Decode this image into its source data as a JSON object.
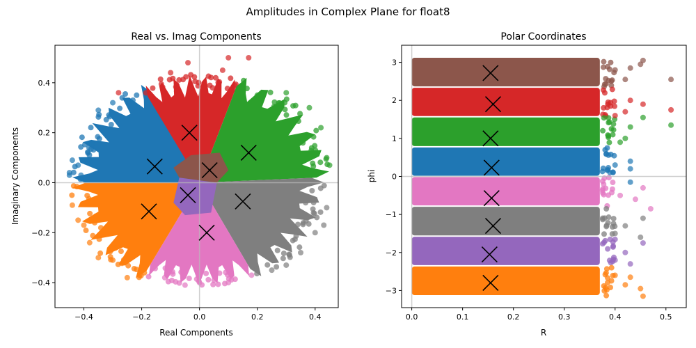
{
  "suptitle": "Amplitudes in Complex Plane for float8",
  "colors": {
    "blue": "#1f77b4",
    "orange": "#ff7f0e",
    "green": "#2ca02c",
    "red": "#d62728",
    "purple": "#9467bd",
    "brown": "#8c564b",
    "pink": "#e377c2",
    "gray": "#7f7f7f",
    "refline": "#bbbbbb",
    "marker": "#000000"
  },
  "chart_data": [
    {
      "type": "scatter",
      "title": "Real vs. Imag Components",
      "xlabel": "Real Components",
      "ylabel": "Imaginary Components",
      "xlim": [
        -0.5,
        0.48
      ],
      "ylim": [
        -0.5,
        0.55
      ],
      "xticks": [
        -0.4,
        -0.2,
        0.0,
        0.2,
        0.4
      ],
      "yticks": [
        -0.4,
        -0.2,
        0.0,
        0.2,
        0.4
      ],
      "xtick_labels": [
        "−0.4",
        "−0.2",
        "0.0",
        "0.2",
        "0.4"
      ],
      "ytick_labels": [
        "−0.4",
        "−0.2",
        "0.0",
        "0.2",
        "0.4"
      ],
      "reference_lines": {
        "x": 0,
        "y": 0
      },
      "cluster_regions": [
        {
          "color_key": "blue",
          "angle_range": [
            2.0,
            3.14
          ],
          "radius": 0.45
        },
        {
          "color_key": "red",
          "angle_range": [
            1.25,
            2.05
          ],
          "radius": 0.44
        },
        {
          "color_key": "green",
          "angle_range": [
            0.05,
            1.25
          ],
          "radius": 0.46
        },
        {
          "color_key": "gray",
          "angle_range": [
            -1.1,
            0.05
          ],
          "radius": 0.44
        },
        {
          "color_key": "pink",
          "angle_range": [
            -2.05,
            -1.1
          ],
          "radius": 0.42
        },
        {
          "color_key": "orange",
          "angle_range": [
            -3.14,
            -2.05
          ],
          "radius": 0.45
        }
      ],
      "inner_regions": [
        {
          "color_key": "brown",
          "polygon": [
            [
              -0.09,
              0.06
            ],
            [
              -0.03,
              0.11
            ],
            [
              0.07,
              0.12
            ],
            [
              0.1,
              0.05
            ],
            [
              0.06,
              0.0
            ],
            [
              -0.07,
              0.02
            ]
          ]
        },
        {
          "color_key": "purple",
          "polygon": [
            [
              -0.07,
              0.02
            ],
            [
              0.06,
              0.0
            ],
            [
              0.04,
              -0.12
            ],
            [
              -0.05,
              -0.13
            ],
            [
              -0.09,
              -0.08
            ]
          ]
        }
      ],
      "centroids": [
        {
          "x": -0.155,
          "y": 0.065
        },
        {
          "x": -0.035,
          "y": 0.2
        },
        {
          "x": 0.17,
          "y": 0.12
        },
        {
          "x": 0.035,
          "y": 0.05
        },
        {
          "x": -0.04,
          "y": -0.05
        },
        {
          "x": 0.15,
          "y": -0.075
        },
        {
          "x": 0.025,
          "y": -0.2
        },
        {
          "x": -0.175,
          "y": -0.115
        }
      ],
      "outliers": [
        {
          "color_key": "blue",
          "points": [
            [
              -0.45,
              0.04
            ],
            [
              -0.44,
              0.09
            ],
            [
              -0.42,
              0.07
            ],
            [
              -0.35,
              0.29
            ],
            [
              -0.3,
              0.32
            ],
            [
              -0.41,
              0.03
            ],
            [
              -0.45,
              0.03
            ]
          ]
        },
        {
          "color_key": "orange",
          "points": [
            [
              -0.44,
              -0.09
            ],
            [
              -0.42,
              -0.15
            ],
            [
              -0.4,
              -0.17
            ],
            [
              -0.38,
              -0.24
            ],
            [
              -0.35,
              -0.3
            ],
            [
              -0.3,
              -0.31
            ],
            [
              -0.25,
              -0.38
            ]
          ]
        },
        {
          "color_key": "red",
          "points": [
            [
              -0.28,
              0.36
            ],
            [
              -0.1,
              0.44
            ],
            [
              -0.04,
              0.48
            ],
            [
              0.1,
              0.5
            ],
            [
              0.17,
              0.5
            ],
            [
              0.08,
              0.45
            ]
          ]
        },
        {
          "color_key": "green",
          "points": [
            [
              0.2,
              0.35
            ],
            [
              0.3,
              0.36
            ],
            [
              0.38,
              0.3
            ],
            [
              0.42,
              0.22
            ],
            [
              0.44,
              0.1
            ],
            [
              0.45,
              0.07
            ]
          ]
        },
        {
          "color_key": "gray",
          "points": [
            [
              0.44,
              -0.1
            ],
            [
              0.43,
              -0.17
            ],
            [
              0.4,
              -0.2
            ],
            [
              0.35,
              -0.28
            ],
            [
              0.3,
              -0.33
            ],
            [
              0.25,
              -0.35
            ]
          ]
        },
        {
          "color_key": "pink",
          "points": [
            [
              -0.12,
              -0.38
            ],
            [
              -0.05,
              -0.41
            ],
            [
              0.0,
              -0.4
            ],
            [
              0.1,
              -0.4
            ],
            [
              0.18,
              -0.37
            ]
          ]
        }
      ]
    },
    {
      "type": "scatter",
      "title": "Polar Coordinates",
      "xlabel": "R",
      "ylabel": "phi",
      "xlim": [
        -0.02,
        0.54
      ],
      "ylim": [
        -3.45,
        3.45
      ],
      "xticks": [
        0.0,
        0.1,
        0.2,
        0.3,
        0.4,
        0.5
      ],
      "yticks": [
        -3,
        -2,
        -1,
        0,
        1,
        2,
        3
      ],
      "xtick_labels": [
        "0.0",
        "0.1",
        "0.2",
        "0.3",
        "0.4",
        "0.5"
      ],
      "ytick_labels": [
        "−3",
        "−2",
        "−1",
        "0",
        "1",
        "2",
        "3"
      ],
      "reference_lines": {
        "x": 0,
        "y": 0
      },
      "bands": [
        {
          "color_key": "brown",
          "phi_range": [
            2.35,
            3.14
          ],
          "r_max": 0.37
        },
        {
          "color_key": "red",
          "phi_range": [
            1.57,
            2.35
          ],
          "r_max": 0.37
        },
        {
          "color_key": "green",
          "phi_range": [
            0.78,
            1.57
          ],
          "r_max": 0.37
        },
        {
          "color_key": "blue",
          "phi_range": [
            0.0,
            0.78
          ],
          "r_max": 0.37
        },
        {
          "color_key": "pink",
          "phi_range": [
            -0.78,
            0.0
          ],
          "r_max": 0.37
        },
        {
          "color_key": "gray",
          "phi_range": [
            -1.57,
            -0.78
          ],
          "r_max": 0.37
        },
        {
          "color_key": "purple",
          "phi_range": [
            -2.35,
            -1.57
          ],
          "r_max": 0.37
        },
        {
          "color_key": "orange",
          "phi_range": [
            -3.14,
            -2.35
          ],
          "r_max": 0.37
        }
      ],
      "centroids": [
        {
          "x": 0.155,
          "y": 2.72
        },
        {
          "x": 0.16,
          "y": 1.9
        },
        {
          "x": 0.155,
          "y": 1.0
        },
        {
          "x": 0.157,
          "y": 0.23
        },
        {
          "x": 0.157,
          "y": -0.57
        },
        {
          "x": 0.16,
          "y": -1.3
        },
        {
          "x": 0.153,
          "y": -2.05
        },
        {
          "x": 0.155,
          "y": -2.8
        }
      ],
      "outliers": [
        {
          "color_key": "brown",
          "points": [
            [
              0.51,
              2.55
            ],
            [
              0.455,
              3.05
            ],
            [
              0.45,
              2.95
            ],
            [
              0.43,
              2.85
            ],
            [
              0.42,
              2.55
            ],
            [
              0.4,
              2.8
            ]
          ]
        },
        {
          "color_key": "red",
          "points": [
            [
              0.51,
              1.75
            ],
            [
              0.455,
              1.9
            ],
            [
              0.43,
              2.0
            ],
            [
              0.42,
              1.7
            ],
            [
              0.4,
              1.6
            ]
          ]
        },
        {
          "color_key": "green",
          "points": [
            [
              0.51,
              1.35
            ],
            [
              0.455,
              1.55
            ],
            [
              0.43,
              1.3
            ],
            [
              0.42,
              1.0
            ],
            [
              0.41,
              0.9
            ]
          ]
        },
        {
          "color_key": "blue",
          "points": [
            [
              0.43,
              0.4
            ],
            [
              0.43,
              0.2
            ],
            [
              0.43,
              -0.15
            ],
            [
              0.4,
              0.3
            ],
            [
              0.39,
              0.1
            ]
          ]
        },
        {
          "color_key": "pink",
          "points": [
            [
              0.47,
              -0.85
            ],
            [
              0.455,
              -0.3
            ],
            [
              0.44,
              -0.6
            ],
            [
              0.41,
              -0.5
            ]
          ]
        },
        {
          "color_key": "gray",
          "points": [
            [
              0.455,
              -1.1
            ],
            [
              0.45,
              -1.6
            ],
            [
              0.42,
              -1.3
            ],
            [
              0.4,
              -1.5
            ]
          ]
        },
        {
          "color_key": "purple",
          "points": [
            [
              0.455,
              -1.75
            ],
            [
              0.43,
              -2.3
            ],
            [
              0.42,
              -2.0
            ],
            [
              0.4,
              -2.2
            ]
          ]
        },
        {
          "color_key": "orange",
          "points": [
            [
              0.455,
              -3.15
            ],
            [
              0.45,
              -2.95
            ],
            [
              0.43,
              -2.65
            ],
            [
              0.42,
              -2.85
            ],
            [
              0.4,
              -2.6
            ]
          ]
        }
      ]
    }
  ]
}
